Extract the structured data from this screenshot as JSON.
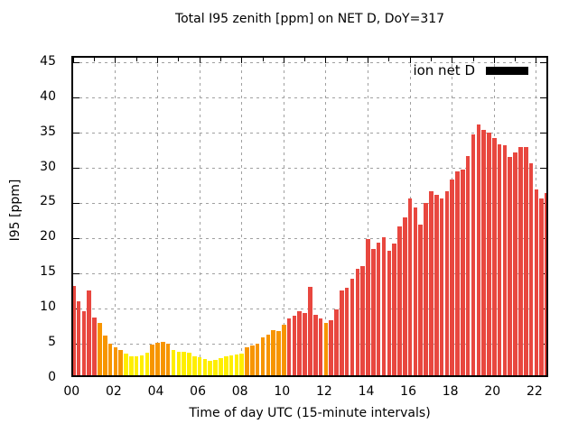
{
  "chart_data": {
    "type": "bar",
    "title": "Total I95 zenith [ppm] on NET D, DoY=317",
    "xlabel": "Time of day UTC (15-minute intervals)",
    "ylabel": "I95 [ppm]",
    "legend": {
      "label": "ion net D",
      "swatch_color": "#000000"
    },
    "x_tick_labels": [
      "00",
      "02",
      "04",
      "06",
      "08",
      "10",
      "12",
      "14",
      "16",
      "18",
      "20",
      "22"
    ],
    "x_tick_hours": [
      0,
      2,
      4,
      6,
      8,
      10,
      12,
      14,
      16,
      18,
      20,
      22
    ],
    "x_minor_tick_step_hours": 1,
    "x_max_hour": 22.63,
    "yticks": [
      0,
      5,
      10,
      15,
      20,
      25,
      30,
      35,
      40,
      45
    ],
    "ylim": [
      0,
      45.75
    ],
    "grid": "dashed",
    "legend_position": "top-right-inside",
    "start_hour": 0,
    "step_hours": 0.25,
    "values": [
      13.0,
      10.8,
      9.4,
      12.4,
      8.5,
      7.7,
      5.9,
      4.8,
      4.2,
      3.9,
      3.3,
      2.9,
      2.9,
      3.1,
      3.5,
      4.6,
      4.9,
      5.0,
      4.8,
      3.8,
      3.6,
      3.6,
      3.5,
      3.0,
      2.8,
      2.6,
      2.3,
      2.5,
      2.7,
      2.9,
      3.1,
      3.2,
      3.3,
      4.3,
      4.5,
      4.8,
      5.6,
      6.0,
      6.7,
      6.6,
      7.5,
      8.3,
      8.8,
      9.4,
      9.1,
      12.8,
      8.9,
      8.3,
      7.7,
      8.1,
      9.6,
      12.4,
      12.7,
      14.0,
      15.4,
      15.8,
      19.6,
      18.2,
      19.1,
      19.9,
      18.0,
      19.0,
      21.4,
      22.8,
      25.5,
      24.2,
      21.7,
      24.8,
      26.5,
      26.0,
      25.4,
      26.5,
      28.2,
      29.3,
      29.6,
      31.5,
      34.6,
      36.0,
      35.2,
      34.8,
      34.1,
      33.1,
      33.0,
      31.3,
      32.0,
      32.8,
      32.8,
      30.4,
      26.7,
      25.5,
      26.2
    ],
    "value_colors": {
      "low": "#ffee00",
      "mid": "#f79500",
      "high": "#e8473f"
    },
    "color_thresholds": {
      "low_below": 3.85,
      "mid_below": 8.05
    },
    "grid_color": "#a0a0a0",
    "axis_color": "#000000",
    "background_color": "#ffffff"
  }
}
